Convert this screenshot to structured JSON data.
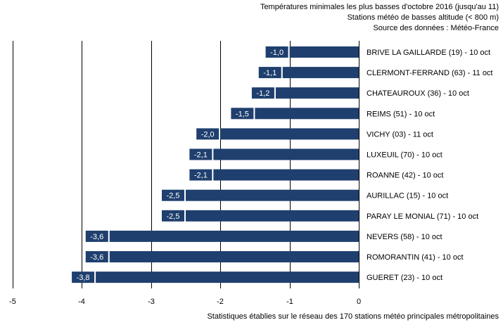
{
  "chart_data": {
    "type": "bar",
    "orientation": "horizontal",
    "title": "Températures minimales les plus basses d'octobre 2016 (jusqu'au 11)",
    "subtitle_lines": [
      "Stations météo de basses altitude (< 800 m)",
      "Source des données : Météo-France"
    ],
    "footnote": "Statistiques établies sur le réseau des 170 stations météo principales métropolitaines",
    "categories": [
      "BRIVE LA GAILLARDE (19) - 10 oct",
      "CLERMONT-FERRAND (63) - 11 oct",
      "CHATEAUROUX (36) - 10 oct",
      "REIMS (51) - 10 oct",
      "VICHY (03) - 11 oct",
      "LUXEUIL (70) - 10 oct",
      "ROANNE (42) - 10 oct",
      "AURILLAC (15) - 10 oct",
      "PARAY LE MONIAL (71) - 10 oct",
      "NEVERS (58) - 10 oct",
      "ROMORANTIN (41) - 10 oct",
      "GUERET (23) - 10 oct"
    ],
    "values": [
      -1.0,
      -1.1,
      -1.2,
      -1.5,
      -2.0,
      -2.1,
      -2.1,
      -2.5,
      -2.5,
      -3.6,
      -3.6,
      -3.8
    ],
    "value_labels": [
      "-1,0",
      "-1,1",
      "-1,2",
      "-1,5",
      "-2,0",
      "-2,1",
      "-2,1",
      "-2,5",
      "-2,5",
      "-3,6",
      "-3,6",
      "-3,8"
    ],
    "xlim": [
      -5,
      0
    ],
    "xticks": [
      -5,
      -4,
      -3,
      -2,
      -1,
      0
    ],
    "xtick_labels": [
      "-5",
      "-4",
      "-3",
      "-2",
      "-1",
      "0"
    ],
    "xlabel": "",
    "ylabel": "",
    "grid": true,
    "legend": "none",
    "colors": {
      "bar": "#1f3f6e",
      "grid": "#000000"
    }
  }
}
